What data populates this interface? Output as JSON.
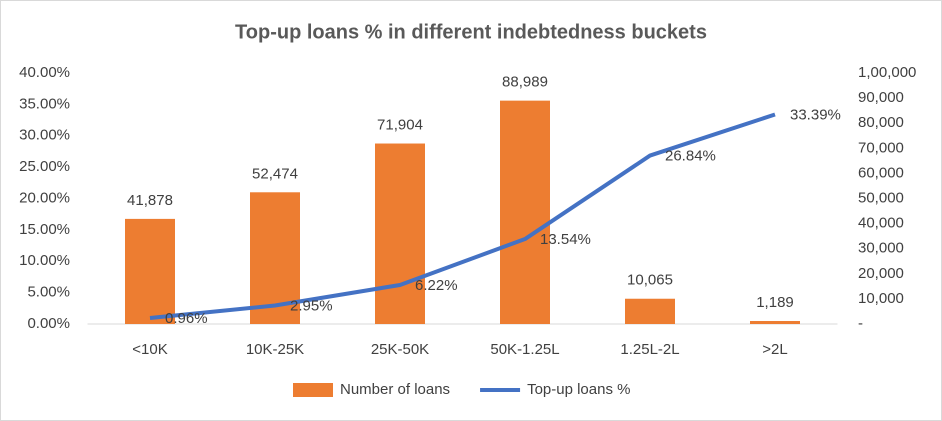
{
  "chart_data": {
    "type": "combo",
    "title": "Top-up loans % in different indebtedness buckets",
    "categories": [
      "<10K",
      "10K-25K",
      "25K-50K",
      "50K-1.25L",
      "1.25L-2L",
      ">2L"
    ],
    "series": [
      {
        "name": "Number of loans",
        "type": "bar",
        "axis": "y2",
        "color": "#ed7d31",
        "values": [
          41878,
          52474,
          71904,
          88989,
          10065,
          1189
        ],
        "value_labels": [
          "41,878",
          "52,474",
          "71,904",
          "88,989",
          "10,065",
          "1,189"
        ]
      },
      {
        "name": "Top-up loans %",
        "type": "line",
        "color": "#4472c4",
        "values": [
          0.96,
          2.95,
          6.22,
          13.54,
          26.84,
          33.39
        ],
        "value_labels": [
          "0.96%",
          "2.95%",
          "6.22%",
          "13.54%",
          "26.84%",
          "33.39%"
        ]
      }
    ],
    "ylim": [
      0,
      40
    ],
    "yticks": [
      {
        "value": 0,
        "label": "0.00%"
      },
      {
        "value": 5,
        "label": "5.00%"
      },
      {
        "value": 10,
        "label": "10.00%"
      },
      {
        "value": 15,
        "label": "15.00%"
      },
      {
        "value": 20,
        "label": "20.00%"
      },
      {
        "value": 25,
        "label": "25.00%"
      },
      {
        "value": 30,
        "label": "30.00%"
      },
      {
        "value": 35,
        "label": "35.00%"
      },
      {
        "value": 40,
        "label": "40.00%"
      }
    ],
    "y2lim": [
      0,
      100000
    ],
    "y2ticks": [
      {
        "value": 0,
        "label": "-"
      },
      {
        "value": 10000,
        "label": "10,000"
      },
      {
        "value": 20000,
        "label": "20,000"
      },
      {
        "value": 30000,
        "label": "30,000"
      },
      {
        "value": 40000,
        "label": "40,000"
      },
      {
        "value": 50000,
        "label": "50,000"
      },
      {
        "value": 60000,
        "label": "60,000"
      },
      {
        "value": 70000,
        "label": "70,000"
      },
      {
        "value": 80000,
        "label": "80,000"
      },
      {
        "value": 90000,
        "label": "90,000"
      },
      {
        "value": 100000,
        "label": "1,00,000"
      }
    ],
    "legend": "bottom",
    "grid": false
  }
}
